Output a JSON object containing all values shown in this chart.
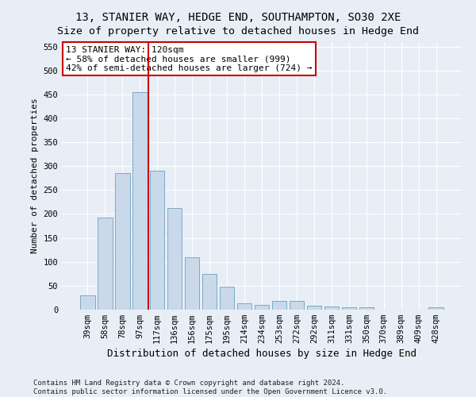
{
  "title": "13, STANIER WAY, HEDGE END, SOUTHAMPTON, SO30 2XE",
  "subtitle": "Size of property relative to detached houses in Hedge End",
  "xlabel": "Distribution of detached houses by size in Hedge End",
  "ylabel": "Number of detached properties",
  "categories": [
    "39sqm",
    "58sqm",
    "78sqm",
    "97sqm",
    "117sqm",
    "136sqm",
    "156sqm",
    "175sqm",
    "195sqm",
    "214sqm",
    "234sqm",
    "253sqm",
    "272sqm",
    "292sqm",
    "311sqm",
    "331sqm",
    "350sqm",
    "370sqm",
    "389sqm",
    "409sqm",
    "428sqm"
  ],
  "values": [
    30,
    192,
    285,
    455,
    290,
    213,
    110,
    74,
    48,
    13,
    10,
    18,
    18,
    8,
    7,
    5,
    5,
    0,
    0,
    0,
    5
  ],
  "bar_color": "#c9d9ea",
  "bar_edge_color": "#7aaac8",
  "vline_color": "#cc0000",
  "vline_x": 3.5,
  "annotation_line1": "13 STANIER WAY: 120sqm",
  "annotation_line2": "← 58% of detached houses are smaller (999)",
  "annotation_line3": "42% of semi-detached houses are larger (724) →",
  "annotation_box_color": "#ffffff",
  "annotation_box_edge": "#cc0000",
  "ylim": [
    0,
    560
  ],
  "yticks": [
    0,
    50,
    100,
    150,
    200,
    250,
    300,
    350,
    400,
    450,
    500,
    550
  ],
  "bg_color": "#e8eef6",
  "footer": "Contains HM Land Registry data © Crown copyright and database right 2024.\nContains public sector information licensed under the Open Government Licence v3.0.",
  "title_fontsize": 10,
  "subtitle_fontsize": 9.5,
  "xlabel_fontsize": 9,
  "ylabel_fontsize": 8,
  "tick_fontsize": 7.5,
  "annotation_fontsize": 8,
  "footer_fontsize": 6.5
}
